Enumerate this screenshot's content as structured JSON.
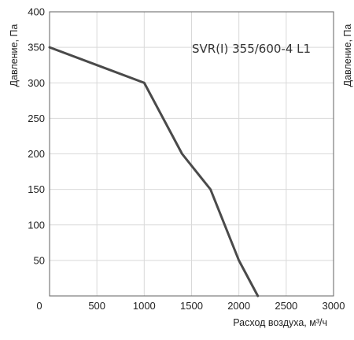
{
  "chart_data": {
    "type": "line",
    "xlabel": "Расход воздуха, м³/ч",
    "ylabel": "Давление, Па",
    "right_ylabel": "Давление, Па",
    "xlim": [
      0,
      3000
    ],
    "ylim": [
      0,
      400
    ],
    "x_ticks": [
      0,
      500,
      1000,
      1500,
      2000,
      2500,
      3000
    ],
    "y_ticks": [
      50,
      100,
      150,
      200,
      250,
      300,
      350,
      400
    ],
    "grid": true,
    "series": [
      {
        "name": "SVR(I) 355/600-4 L1",
        "color": "#4a4a4a",
        "x": [
          0,
          1000,
          1400,
          1700,
          2000,
          2200
        ],
        "y": [
          350,
          300,
          200,
          150,
          50,
          0
        ]
      }
    ]
  }
}
